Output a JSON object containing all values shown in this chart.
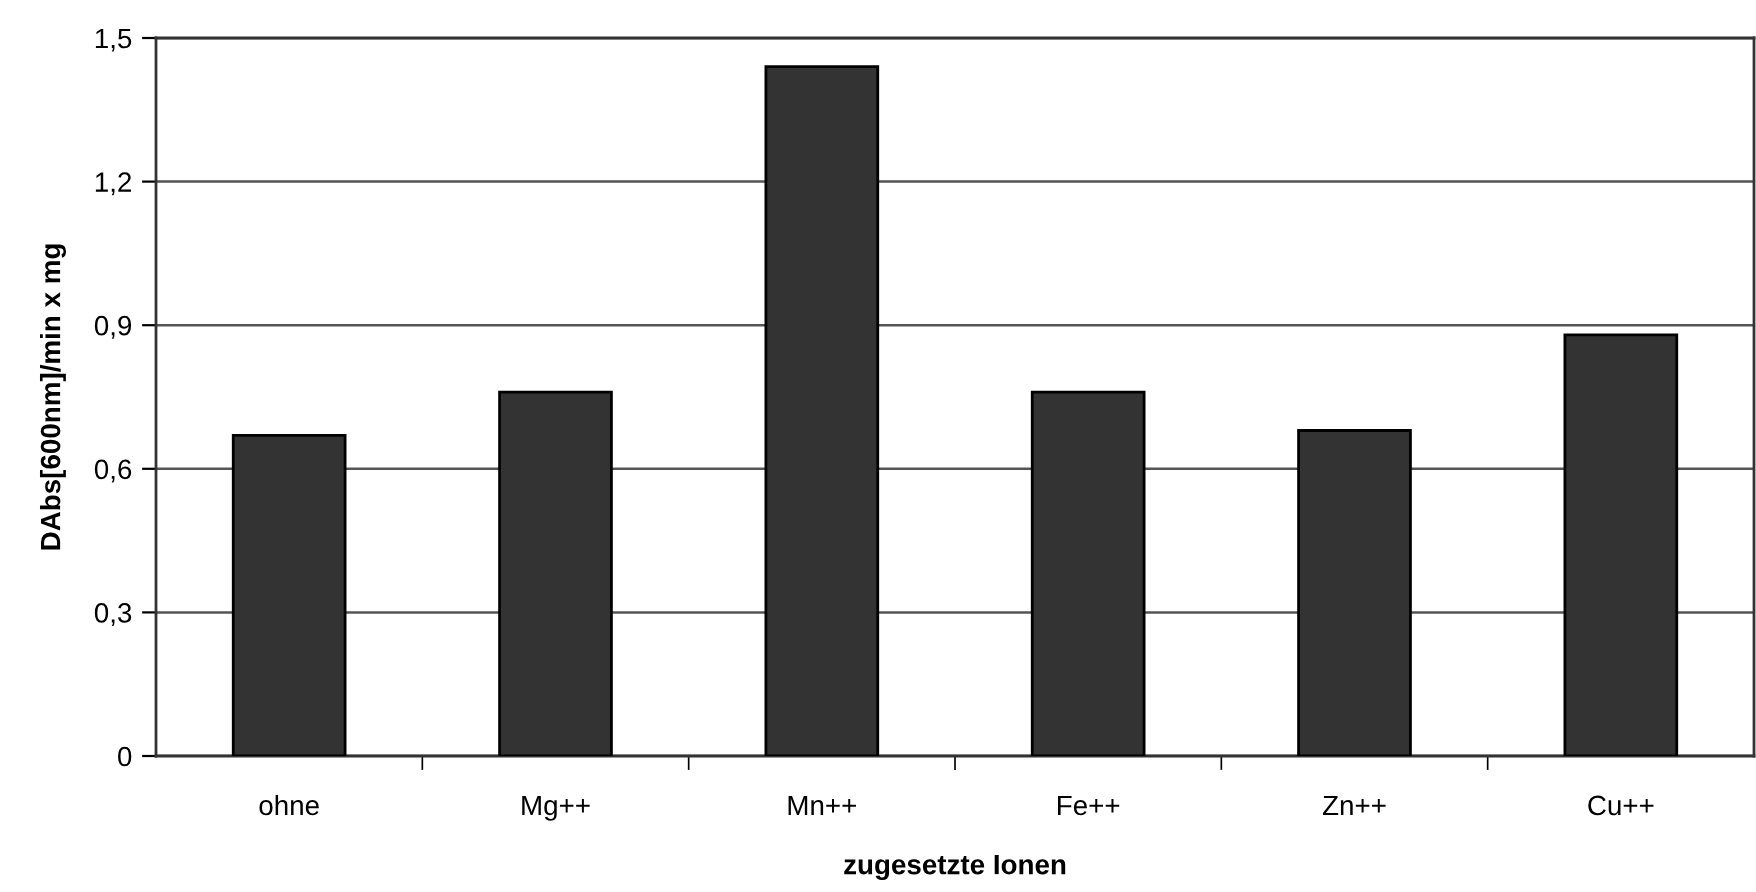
{
  "chart_data": {
    "type": "bar",
    "xlabel": "zugesetzte Ionen",
    "ylabel": "DAbs[600nm]/min x mg",
    "categories": [
      "ohne",
      "Mg++",
      "Mn++",
      "Fe++",
      "Zn++",
      "Cu++"
    ],
    "values": [
      0.67,
      0.76,
      1.44,
      0.76,
      0.68,
      0.88
    ],
    "color": "#333333",
    "ylim": [
      0,
      1.5
    ],
    "yticks": [
      0,
      {
        "value": 0.3,
        "label": "0,3"
      },
      {
        "value": 0.6,
        "label": "0,6"
      },
      {
        "value": 0.9,
        "label": "0,9"
      },
      {
        "value": 1.2,
        "label": "1,2"
      },
      {
        "value": 1.5,
        "label": "1,5"
      }
    ],
    "grid": "y",
    "legend": false
  }
}
